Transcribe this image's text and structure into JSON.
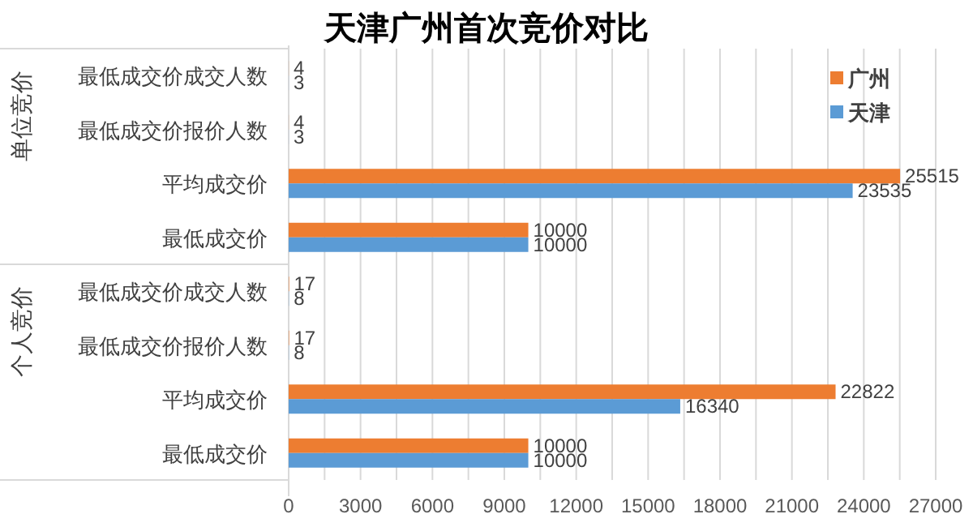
{
  "chart_data": {
    "type": "bar",
    "orientation": "horizontal",
    "title": "天津广州首次竞价对比",
    "categories": [
      "最低成交价成交人数",
      "最低成交价报价人数",
      "平均成交价",
      "最低成交价",
      "最低成交价成交人数",
      "最低成交价报价人数",
      "平均成交价",
      "最低成交价"
    ],
    "series": [
      {
        "name": "广州",
        "color": "#ed7d31",
        "values": [
          4,
          4,
          25515,
          10000,
          17,
          17,
          22822,
          10000
        ]
      },
      {
        "name": "天津",
        "color": "#5b9bd5",
        "values": [
          3,
          3,
          23535,
          10000,
          8,
          8,
          16340,
          10000
        ]
      }
    ],
    "annotations": [
      "单位竞价",
      "个人竞价"
    ],
    "xlim": [
      0,
      27000
    ],
    "xticks": [
      0,
      {
        "value": 1500,
        "label": null
      },
      3000,
      {
        "value": 4500,
        "label": null
      },
      6000,
      {
        "value": 7500,
        "label": null
      },
      9000,
      {
        "value": 10500,
        "label": null
      },
      12000,
      {
        "value": 13500,
        "label": null
      },
      15000,
      {
        "value": 16500,
        "label": null
      },
      18000,
      {
        "value": 19500,
        "label": null
      },
      21000,
      {
        "value": 22500,
        "label": null
      },
      24000,
      {
        "value": 25500,
        "label": null
      },
      27000
    ],
    "grid": "x",
    "legend": "top right",
    "data_labels": true
  }
}
